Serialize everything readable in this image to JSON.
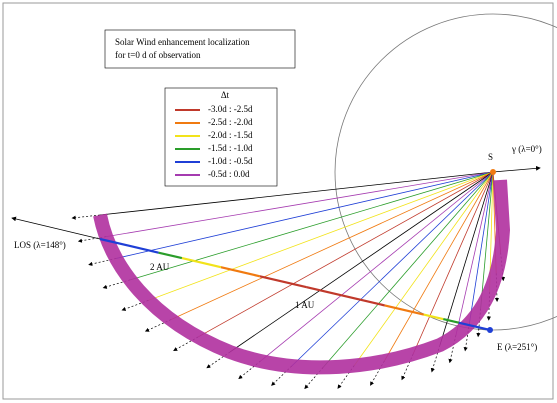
{
  "title": {
    "line1": "Solar Wind enhancement localization",
    "line2": "for t=0 d of observation"
  },
  "legend": {
    "header": "Δt",
    "entries": [
      {
        "label": "-3.0d : -2.5d",
        "color": "#c0392b"
      },
      {
        "label": "-2.5d : -2.0d",
        "color": "#f07a10"
      },
      {
        "label": "-2.0d : -1.5d",
        "color": "#f2e31a"
      },
      {
        "label": "-1.5d : -1.0d",
        "color": "#2a9d2a"
      },
      {
        "label": "-1.0d : -0.5d",
        "color": "#1f3fd6"
      },
      {
        "label": "-0.5d : 0.0d",
        "color": "#a53bb0"
      }
    ]
  },
  "labels": {
    "sun": "S",
    "gamma": "γ (λ=0°)",
    "los": "LOS (λ=148°)",
    "au2": "2 AU",
    "au1": "1 AU",
    "earth": "E (λ=251°)"
  }
}
